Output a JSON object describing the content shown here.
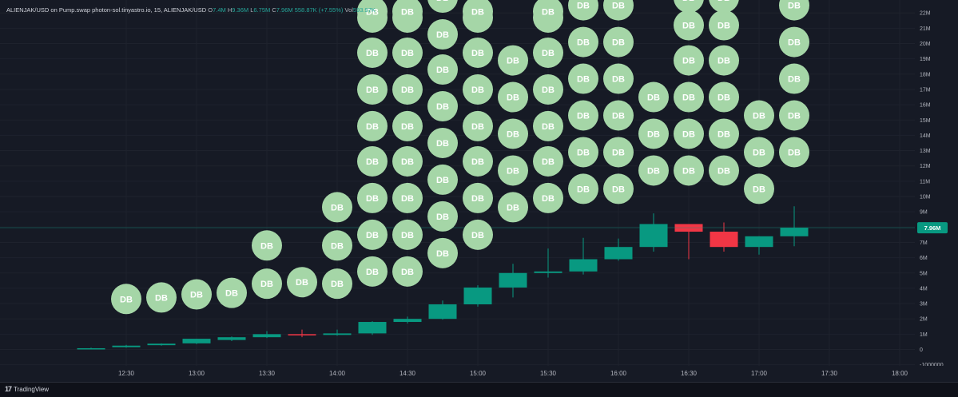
{
  "header": {
    "symbol": "ALIENJAK/USD on Pump.swap photon-sol.tinyastro.io, 15, ALIENJAK/USD",
    "o_label": "O",
    "o_value": "7.4M",
    "h_label": "H",
    "h_value": "9.36M",
    "l_label": "L",
    "l_value": "6.75M",
    "c_label": "C",
    "c_value": "7.96M",
    "change": "558.87K (+7.55%)",
    "vol_label": "Vol",
    "vol_value": "593.97K"
  },
  "footer": {
    "brand": "TradingView",
    "logo": "17"
  },
  "colors": {
    "up": "#089981",
    "down": "#f23645",
    "marker": "#a5d6a7",
    "marker_text": "#ffffff",
    "price_tag": "#089981"
  },
  "chart_data": {
    "type": "candlestick",
    "y_ticks": [
      "22M",
      "21M",
      "20M",
      "19M",
      "18M",
      "17M",
      "16M",
      "15M",
      "14M",
      "13M",
      "12M",
      "11M",
      "10M",
      "9M",
      "8M",
      "7M",
      "6M",
      "5M",
      "4M",
      "3M",
      "2M",
      "1M",
      "0",
      "-1000000"
    ],
    "x_ticks": [
      "12:30",
      "13:00",
      "13:30",
      "14:00",
      "14:30",
      "15:00",
      "15:30",
      "16:00",
      "16:30",
      "17:00",
      "17:30",
      "18:00"
    ],
    "last_price_label": "7.96M",
    "marker_label": "DB",
    "candles": [
      {
        "t": "12:15",
        "o": 0.05,
        "h": 0.12,
        "l": 0.03,
        "c": 0.08
      },
      {
        "t": "12:30",
        "o": 0.15,
        "h": 0.3,
        "l": 0.12,
        "c": 0.25
      },
      {
        "t": "12:45",
        "o": 0.28,
        "h": 0.4,
        "l": 0.25,
        "c": 0.38
      },
      {
        "t": "13:00",
        "o": 0.4,
        "h": 0.7,
        "l": 0.35,
        "c": 0.7
      },
      {
        "t": "13:15",
        "o": 0.62,
        "h": 0.85,
        "l": 0.55,
        "c": 0.8
      },
      {
        "t": "13:30",
        "o": 0.8,
        "h": 1.2,
        "l": 0.75,
        "c": 1.0
      },
      {
        "t": "13:45",
        "o": 1.0,
        "h": 1.3,
        "l": 0.8,
        "c": 0.95
      },
      {
        "t": "14:00",
        "o": 0.95,
        "h": 1.3,
        "l": 0.9,
        "c": 1.05
      },
      {
        "t": "14:15",
        "o": 1.05,
        "h": 1.85,
        "l": 0.95,
        "c": 1.8
      },
      {
        "t": "14:30",
        "o": 1.8,
        "h": 2.15,
        "l": 1.7,
        "c": 2.0
      },
      {
        "t": "14:45",
        "o": 2.0,
        "h": 3.2,
        "l": 1.95,
        "c": 2.95
      },
      {
        "t": "15:00",
        "o": 2.95,
        "h": 4.2,
        "l": 2.8,
        "c": 4.05
      },
      {
        "t": "15:15",
        "o": 4.05,
        "h": 5.6,
        "l": 3.4,
        "c": 5.0
      },
      {
        "t": "15:30",
        "o": 5.0,
        "h": 6.6,
        "l": 4.7,
        "c": 5.1
      },
      {
        "t": "15:45",
        "o": 5.1,
        "h": 7.3,
        "l": 4.9,
        "c": 5.9
      },
      {
        "t": "16:00",
        "o": 5.9,
        "h": 7.25,
        "l": 5.8,
        "c": 6.7
      },
      {
        "t": "16:15",
        "o": 6.7,
        "h": 8.9,
        "l": 6.4,
        "c": 8.2
      },
      {
        "t": "16:30",
        "o": 8.2,
        "h": 8.2,
        "l": 5.9,
        "c": 7.7
      },
      {
        "t": "16:45",
        "o": 7.7,
        "h": 8.3,
        "l": 6.4,
        "c": 6.7
      },
      {
        "t": "17:00",
        "o": 6.7,
        "h": 7.4,
        "l": 6.2,
        "c": 7.4
      },
      {
        "t": "17:15",
        "o": 7.4,
        "h": 9.36,
        "l": 6.75,
        "c": 7.96
      }
    ],
    "markers": [
      {
        "t": "12:30",
        "y": [
          3.3
        ]
      },
      {
        "t": "12:45",
        "y": [
          3.4
        ]
      },
      {
        "t": "13:00",
        "y": [
          3.6
        ]
      },
      {
        "t": "13:15",
        "y": [
          3.7
        ]
      },
      {
        "t": "13:30",
        "y": [
          4.3,
          6.8
        ]
      },
      {
        "t": "13:45",
        "y": [
          4.4
        ]
      },
      {
        "t": "14:00",
        "y": [
          4.3,
          6.8,
          9.3
        ]
      },
      {
        "t": "14:15",
        "y": [
          5.1,
          7.5,
          9.9,
          12.3,
          14.6,
          17.0,
          19.4,
          21.7,
          22.1
        ]
      },
      {
        "t": "14:30",
        "y": [
          5.1,
          7.5,
          9.9,
          12.3,
          14.6,
          17.0,
          19.4,
          21.7,
          22.1
        ]
      },
      {
        "t": "14:45",
        "y": [
          6.3,
          8.7,
          11.1,
          13.5,
          15.9,
          18.3,
          20.6,
          23.0
        ]
      },
      {
        "t": "15:00",
        "y": [
          7.5,
          9.9,
          12.3,
          14.6,
          17.0,
          19.4,
          21.7,
          22.1
        ]
      },
      {
        "t": "15:15",
        "y": [
          9.3,
          11.7,
          14.1,
          16.5,
          18.9
        ]
      },
      {
        "t": "15:30",
        "y": [
          9.9,
          12.3,
          14.6,
          17.0,
          19.4,
          21.7,
          22.1
        ]
      },
      {
        "t": "15:45",
        "y": [
          10.5,
          12.9,
          15.3,
          17.7,
          20.1,
          22.5
        ]
      },
      {
        "t": "16:00",
        "y": [
          10.5,
          12.9,
          15.3,
          17.7,
          20.1,
          22.5
        ]
      },
      {
        "t": "16:15",
        "y": [
          11.7,
          14.1,
          16.5
        ]
      },
      {
        "t": "16:30",
        "y": [
          11.7,
          14.1,
          16.5,
          18.9,
          21.2,
          23.0
        ]
      },
      {
        "t": "16:45",
        "y": [
          11.7,
          14.1,
          16.5,
          18.9,
          21.2,
          23.0
        ]
      },
      {
        "t": "17:00",
        "y": [
          10.5,
          12.9,
          15.3
        ]
      },
      {
        "t": "17:15",
        "y": [
          12.9,
          15.3,
          17.7,
          20.1,
          22.5
        ]
      }
    ]
  }
}
